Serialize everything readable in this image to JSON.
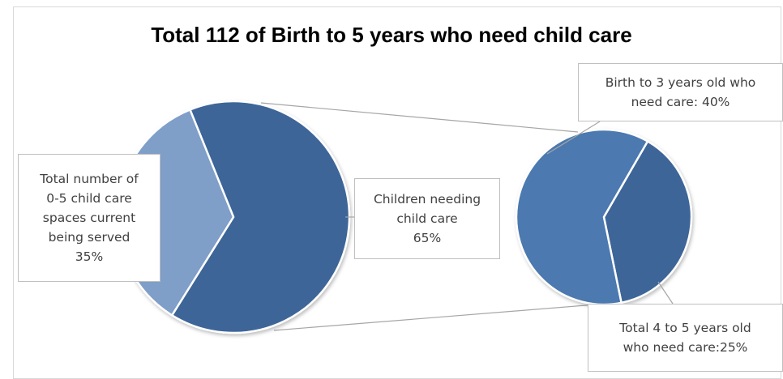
{
  "chart_data": {
    "type": "pie",
    "subtype": "pie-of-pie",
    "title": "Total 112 of Birth to 5 years who need child care",
    "main_pie": [
      {
        "label_lines": [
          "Total number of",
          "0-5 child care",
          "spaces current",
          "being served",
          "35%"
        ],
        "value": 35,
        "color": "#7f9ec8"
      },
      {
        "label_lines": [
          "Children needing",
          "child care",
          "65%"
        ],
        "value": 65,
        "color": "#3e6598"
      }
    ],
    "secondary_pie": [
      {
        "label_lines": [
          "Birth to 3 years old who",
          "need care: 40%"
        ],
        "value": 40,
        "color": "#4c79b0"
      },
      {
        "label_lines": [
          "Total 4 to 5 years old",
          "who need care:25%"
        ],
        "value": 25,
        "color": "#3e6598"
      }
    ]
  }
}
